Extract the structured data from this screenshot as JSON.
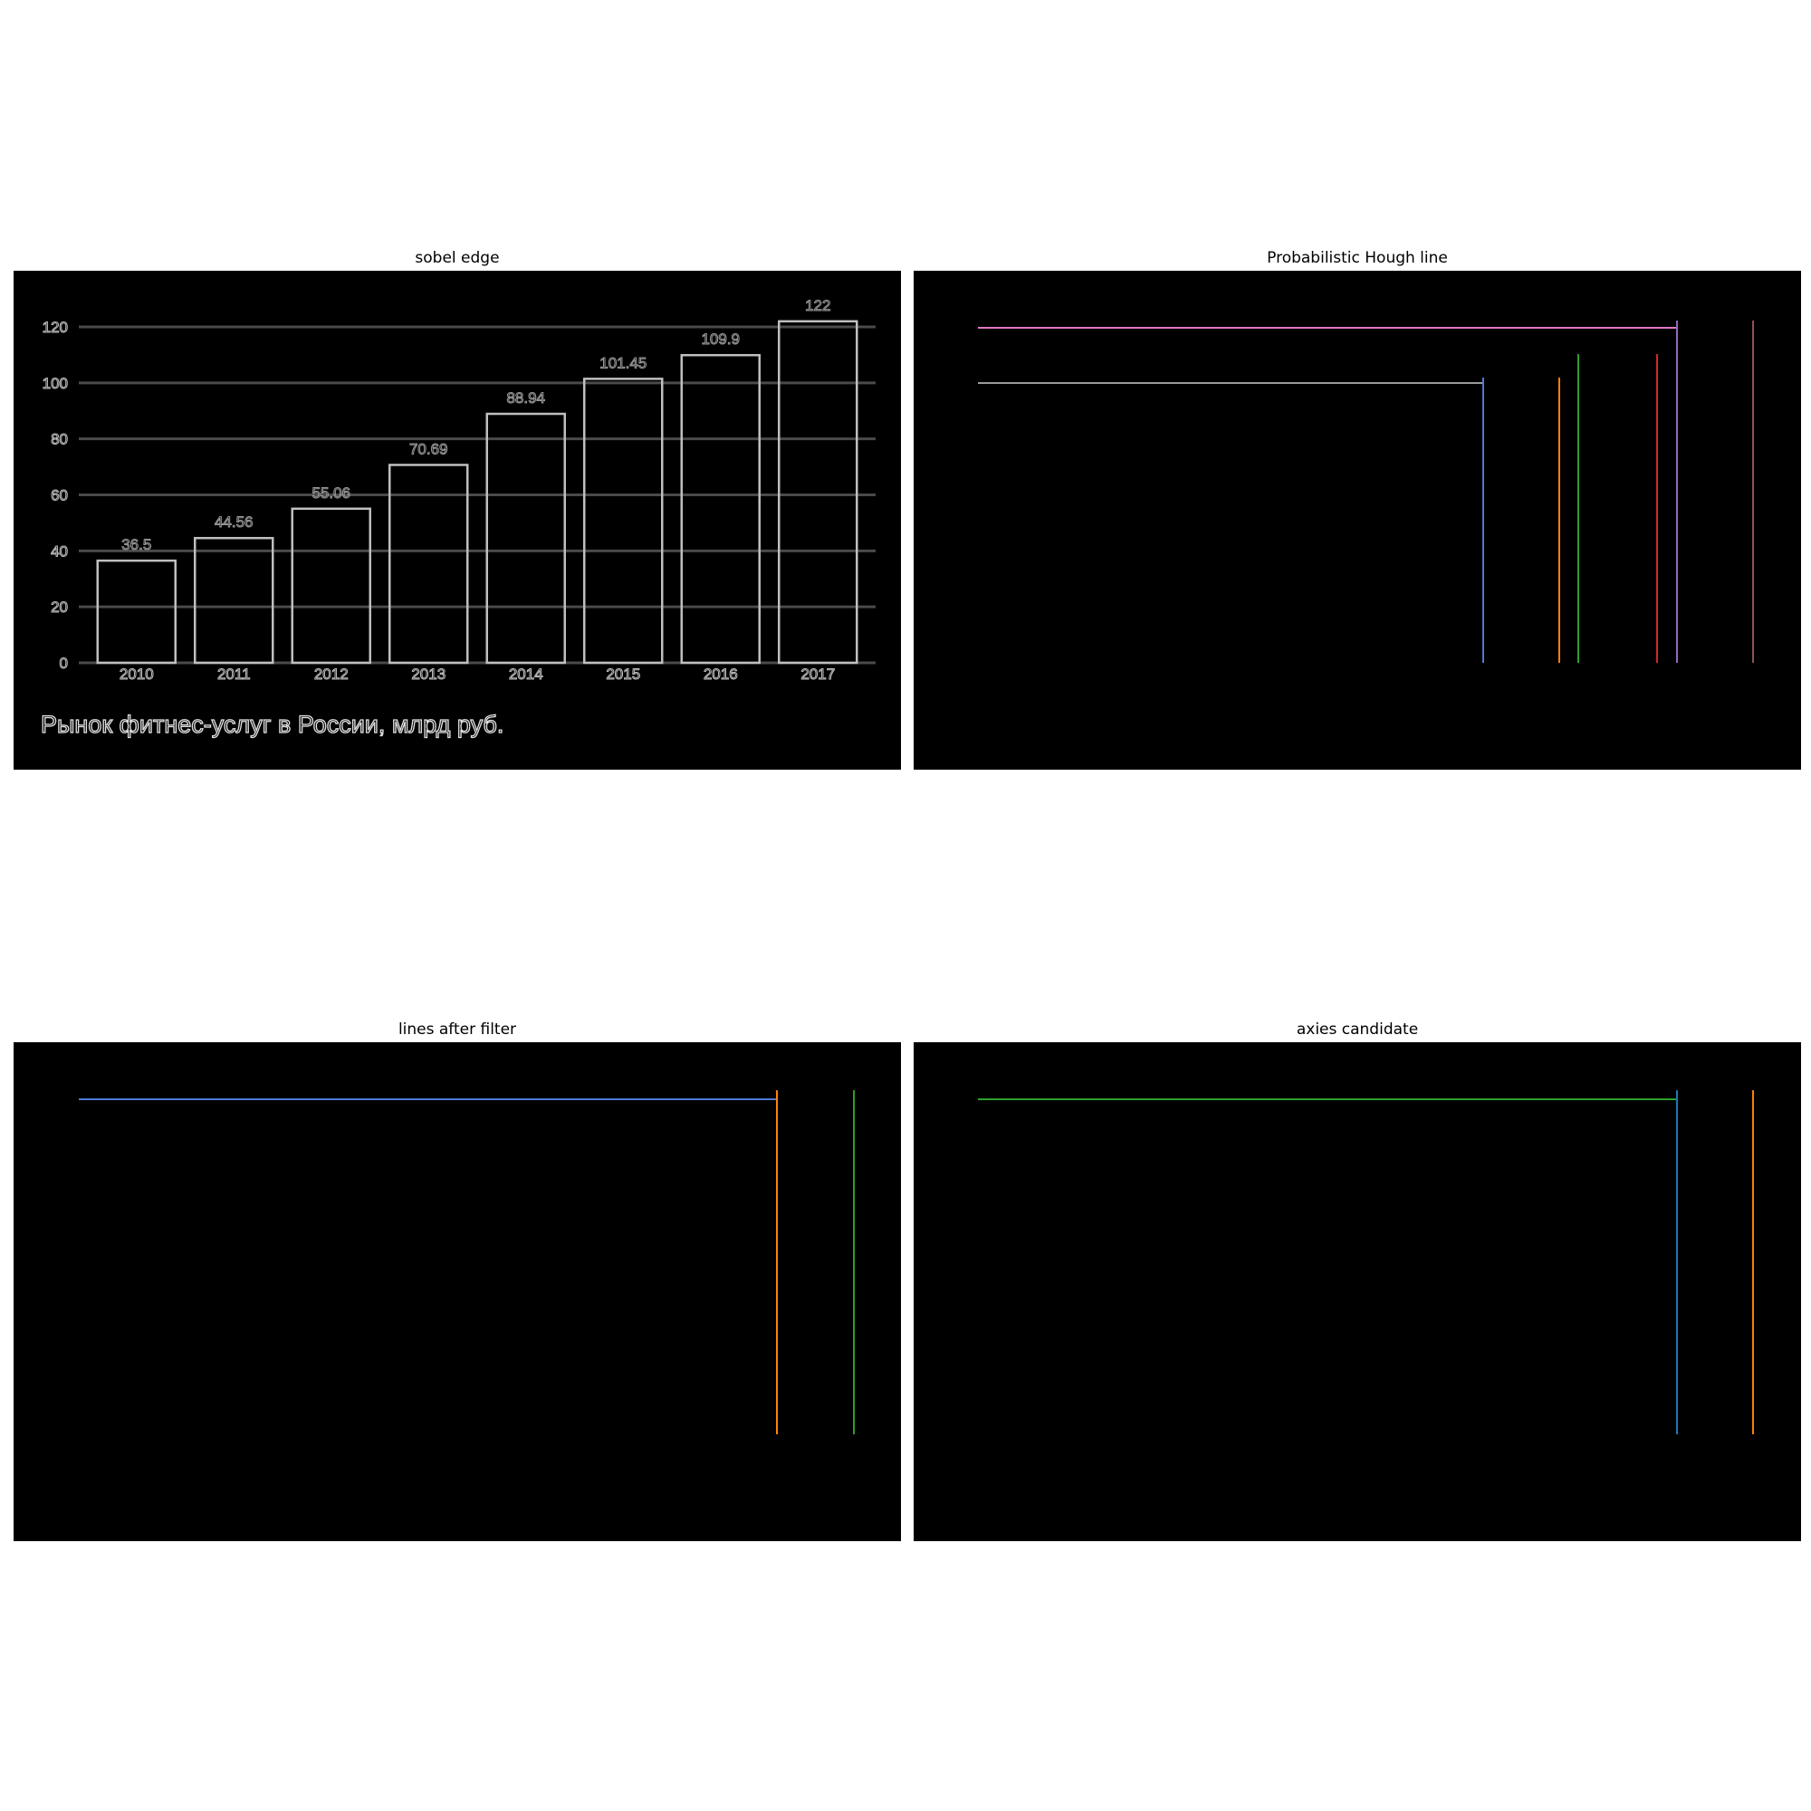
{
  "panels": {
    "sobel": "sobel edge",
    "hough": "Probabilistic Hough line",
    "filtered": "lines after filter",
    "axes": "axies candidate"
  },
  "colors": {
    "background": "#000000",
    "edge": "#bfbfbf",
    "grid": "#4a4a4a",
    "line_palette": [
      "#4e79d6",
      "#ff7f0e",
      "#2ca02c",
      "#d62728",
      "#9467bd",
      "#8c564b",
      "#e377c2",
      "#7f7f7f"
    ]
  },
  "chart_data": [
    {
      "type": "bar",
      "title": "sobel edge",
      "caption": "Рынок фитнес-услуг в России, млрд руб.",
      "categories": [
        "2010",
        "2011",
        "2012",
        "2013",
        "2014",
        "2015",
        "2016",
        "2017"
      ],
      "values": [
        36.5,
        44.56,
        55.06,
        70.69,
        88.94,
        101.45,
        109.9,
        122
      ],
      "value_labels": [
        "36.5",
        "44.56",
        "55.06",
        "70.69",
        "88.94",
        "101.45",
        "109.9",
        "122"
      ],
      "y_ticks": [
        "0",
        "20",
        "40",
        "60",
        "80",
        "100",
        "120"
      ],
      "ylim": [
        0,
        120
      ],
      "grid": true
    },
    {
      "type": "line",
      "title": "Probabilistic Hough line",
      "description_units": "image of detected line segments",
      "horizontal_segments": 2,
      "vertical_segments": 6
    },
    {
      "type": "line",
      "title": "lines after filter",
      "horizontal_segments": 1,
      "vertical_segments": 2
    },
    {
      "type": "line",
      "title": "axies candidate",
      "horizontal_segments": 1,
      "vertical_segments": 2
    }
  ]
}
